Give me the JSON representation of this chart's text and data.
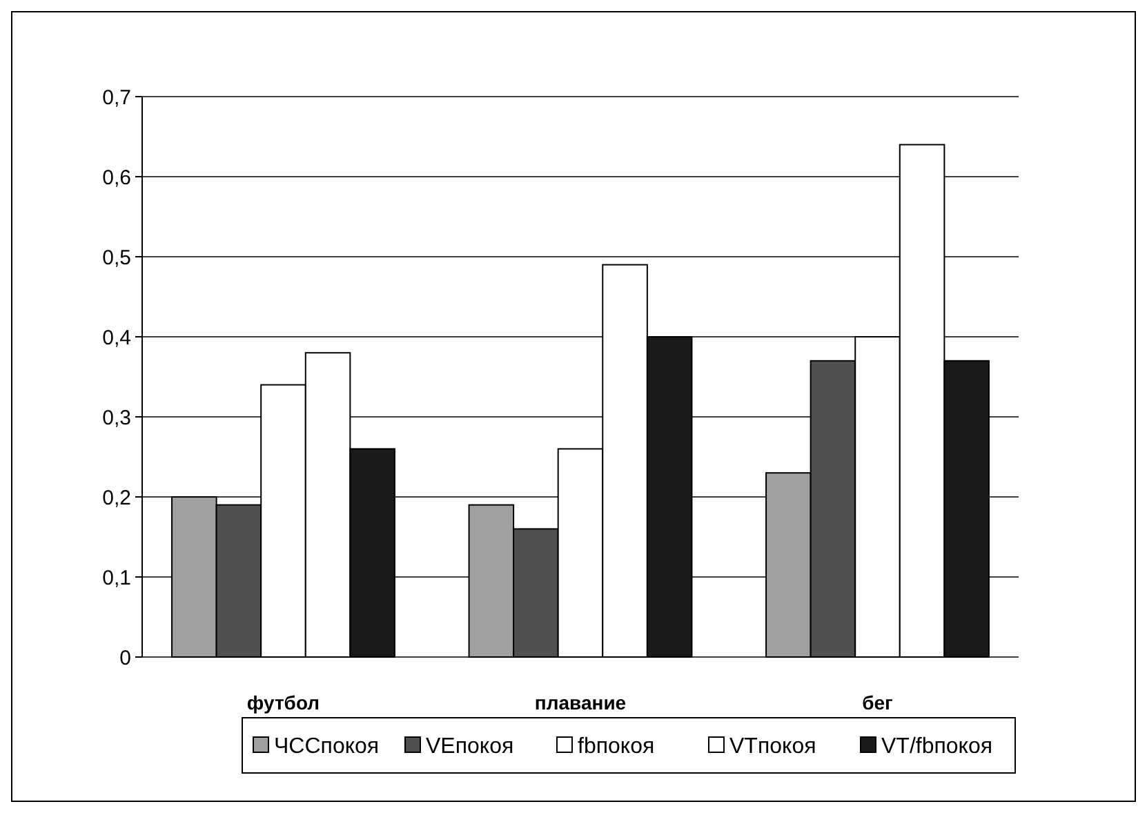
{
  "chart_data": {
    "type": "bar",
    "categories": [
      "футбол",
      "плавание",
      "бег"
    ],
    "series": [
      {
        "name": "ЧССпокоя",
        "color": "#a0a0a0",
        "values": [
          0.2,
          0.19,
          0.23
        ]
      },
      {
        "name": "VEпокоя",
        "color": "#505050",
        "values": [
          0.19,
          0.16,
          0.37
        ]
      },
      {
        "name": "fbпокоя",
        "color": "#ffffff",
        "values": [
          0.34,
          0.26,
          0.4
        ]
      },
      {
        "name": "VTпокоя",
        "color": "#ffffff",
        "values": [
          0.38,
          0.49,
          0.64
        ]
      },
      {
        "name": "VT/fbпокоя",
        "color": "#1a1a1a",
        "values": [
          0.26,
          0.4,
          0.37
        ]
      }
    ],
    "ylim": [
      0,
      0.7
    ],
    "yticks": [
      {
        "value": 0,
        "label": "0"
      },
      {
        "value": 0.1,
        "label": "0,1"
      },
      {
        "value": 0.2,
        "label": "0,2"
      },
      {
        "value": 0.3,
        "label": "0,3"
      },
      {
        "value": 0.4,
        "label": "0,4"
      },
      {
        "value": 0.5,
        "label": "0,5"
      },
      {
        "value": 0.6,
        "label": "0,6"
      },
      {
        "value": 0.7,
        "label": "0,7"
      }
    ],
    "grid": "y",
    "legend": "bottom"
  }
}
